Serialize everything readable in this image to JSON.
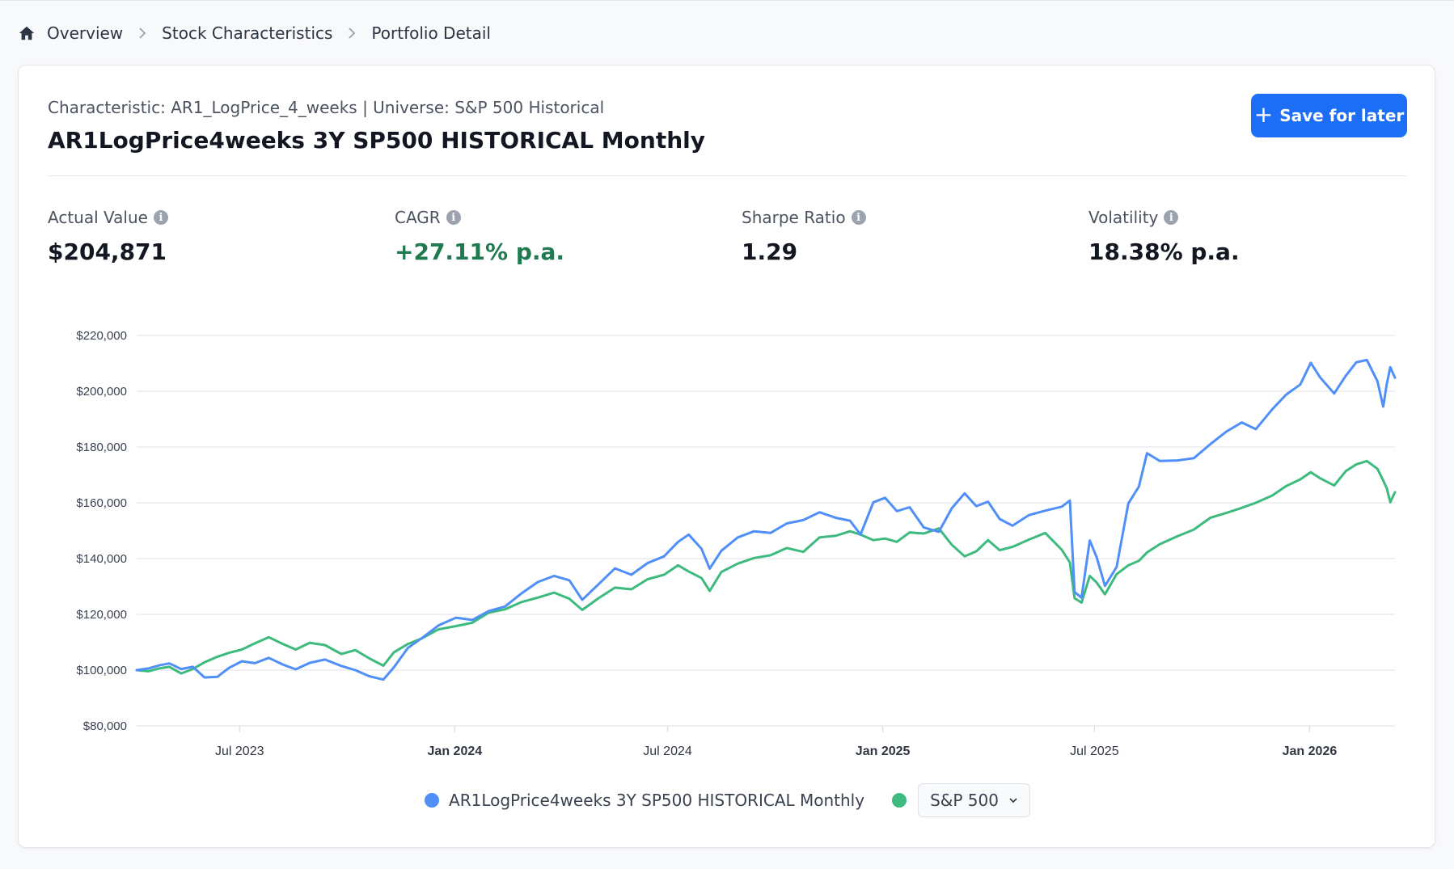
{
  "breadcrumb": {
    "items": [
      {
        "label": "Overview",
        "icon": "home-icon"
      },
      {
        "label": "Stock Characteristics"
      },
      {
        "label": "Portfolio Detail"
      }
    ]
  },
  "header": {
    "subtitle": "Characteristic: AR1_LogPrice_4_weeks | Universe: S&P 500 Historical",
    "title": "AR1LogPrice4weeks 3Y SP500 HISTORICAL Monthly",
    "save_button": {
      "label": "Save for later",
      "icon": "plus-icon"
    }
  },
  "metrics": [
    {
      "label": "Actual Value",
      "value": "$204,871",
      "icon": "info-icon"
    },
    {
      "label": "CAGR",
      "value": "+27.11% p.a.",
      "icon": "info-icon",
      "color": "#1f7a4f"
    },
    {
      "label": "Sharpe Ratio",
      "value": "1.29",
      "icon": "info-icon"
    },
    {
      "label": "Volatility",
      "value": "18.38% p.a.",
      "icon": "info-icon"
    }
  ],
  "legend": {
    "series_label": "AR1LogPrice4weeks 3Y SP500 HISTORICAL Monthly",
    "benchmark_select": {
      "selected": "S&P 500",
      "icon": "chevron-down-icon"
    }
  },
  "colors": {
    "primary": "#1d6ef6",
    "series_blue": "#4f8ff7",
    "series_green": "#3dba7e",
    "positive": "#1f7a4f",
    "gridline": "#e6e8ec"
  },
  "chart_data": {
    "type": "line",
    "title": "",
    "xlabel": "",
    "ylabel": "",
    "ylim": [
      80000,
      220000
    ],
    "xlim": [
      "2023-04-04",
      "2026-03-15"
    ],
    "grid": true,
    "legend_position": "bottom-center",
    "y_ticks": [
      {
        "label": "$80,000",
        "value": 80000
      },
      {
        "label": "$100,000",
        "value": 100000
      },
      {
        "label": "$120,000",
        "value": 120000
      },
      {
        "label": "$140,000",
        "value": 140000
      },
      {
        "label": "$160,000",
        "value": 160000
      },
      {
        "label": "$180,000",
        "value": 180000
      },
      {
        "label": "$200,000",
        "value": 200000
      },
      {
        "label": "$220,000",
        "value": 220000
      }
    ],
    "x_ticks": [
      {
        "label": "Jul 2023",
        "date": "2023-07-01",
        "bold": false
      },
      {
        "label": "Jan 2024",
        "date": "2024-01-01",
        "bold": true
      },
      {
        "label": "Jul 2024",
        "date": "2024-07-01",
        "bold": false
      },
      {
        "label": "Jan 2025",
        "date": "2025-01-01",
        "bold": true
      },
      {
        "label": "Jul 2025",
        "date": "2025-07-01",
        "bold": false
      },
      {
        "label": "Jan 2026",
        "date": "2026-01-01",
        "bold": true
      }
    ],
    "series": [
      {
        "name": "AR1LogPrice4weeks 3Y SP500 HISTORICAL Monthly",
        "color": "#4f8ff7",
        "points": [
          [
            "2023-04-04",
            100000
          ],
          [
            "2023-04-14",
            100600
          ],
          [
            "2023-04-24",
            101800
          ],
          [
            "2023-05-02",
            102400
          ],
          [
            "2023-05-12",
            100400
          ],
          [
            "2023-05-22",
            101200
          ],
          [
            "2023-06-01",
            97400
          ],
          [
            "2023-06-12",
            97600
          ],
          [
            "2023-06-22",
            100800
          ],
          [
            "2023-07-03",
            103200
          ],
          [
            "2023-07-14",
            102500
          ],
          [
            "2023-07-26",
            104400
          ],
          [
            "2023-08-07",
            102000
          ],
          [
            "2023-08-18",
            100300
          ],
          [
            "2023-08-30",
            102600
          ],
          [
            "2023-09-12",
            103800
          ],
          [
            "2023-09-26",
            101500
          ],
          [
            "2023-10-08",
            100000
          ],
          [
            "2023-10-20",
            97800
          ],
          [
            "2023-11-01",
            96600
          ],
          [
            "2023-11-10",
            101000
          ],
          [
            "2023-11-22",
            108000
          ],
          [
            "2023-12-04",
            111500
          ],
          [
            "2023-12-18",
            116000
          ],
          [
            "2024-01-02",
            118800
          ],
          [
            "2024-01-16",
            118000
          ],
          [
            "2024-01-30",
            121200
          ],
          [
            "2024-02-13",
            122800
          ],
          [
            "2024-02-27",
            127500
          ],
          [
            "2024-03-12",
            131600
          ],
          [
            "2024-03-26",
            133800
          ],
          [
            "2024-04-08",
            132200
          ],
          [
            "2024-04-19",
            125200
          ],
          [
            "2024-05-03",
            130800
          ],
          [
            "2024-05-17",
            136500
          ],
          [
            "2024-05-31",
            134200
          ],
          [
            "2024-06-14",
            138400
          ],
          [
            "2024-06-28",
            140800
          ],
          [
            "2024-07-10",
            146000
          ],
          [
            "2024-07-19",
            148600
          ],
          [
            "2024-07-30",
            143500
          ],
          [
            "2024-08-06",
            136400
          ],
          [
            "2024-08-16",
            142800
          ],
          [
            "2024-08-30",
            147600
          ],
          [
            "2024-09-13",
            149800
          ],
          [
            "2024-09-27",
            149200
          ],
          [
            "2024-10-11",
            152600
          ],
          [
            "2024-10-25",
            153800
          ],
          [
            "2024-11-08",
            156600
          ],
          [
            "2024-11-22",
            154600
          ],
          [
            "2024-12-04",
            153600
          ],
          [
            "2024-12-13",
            148600
          ],
          [
            "2024-12-24",
            160200
          ],
          [
            "2025-01-03",
            161800
          ],
          [
            "2025-01-13",
            157000
          ],
          [
            "2025-01-24",
            158400
          ],
          [
            "2025-02-05",
            151200
          ],
          [
            "2025-02-18",
            149600
          ],
          [
            "2025-03-01",
            158000
          ],
          [
            "2025-03-12",
            163400
          ],
          [
            "2025-03-22",
            158800
          ],
          [
            "2025-04-01",
            160400
          ],
          [
            "2025-04-11",
            154200
          ],
          [
            "2025-04-22",
            151800
          ],
          [
            "2025-05-06",
            155600
          ],
          [
            "2025-05-20",
            157200
          ],
          [
            "2025-06-03",
            158600
          ],
          [
            "2025-06-10",
            160800
          ],
          [
            "2025-06-14",
            128000
          ],
          [
            "2025-06-20",
            126000
          ],
          [
            "2025-06-27",
            146500
          ],
          [
            "2025-07-03",
            140400
          ],
          [
            "2025-07-10",
            130200
          ],
          [
            "2025-07-20",
            137000
          ],
          [
            "2025-07-30",
            159800
          ],
          [
            "2025-08-08",
            165800
          ],
          [
            "2025-08-15",
            177800
          ],
          [
            "2025-08-26",
            175000
          ],
          [
            "2025-09-10",
            175200
          ],
          [
            "2025-09-24",
            176000
          ],
          [
            "2025-10-08",
            181000
          ],
          [
            "2025-10-22",
            185600
          ],
          [
            "2025-11-04",
            188800
          ],
          [
            "2025-11-16",
            186400
          ],
          [
            "2025-11-30",
            193500
          ],
          [
            "2025-12-12",
            198800
          ],
          [
            "2025-12-24",
            202400
          ],
          [
            "2026-01-02",
            210200
          ],
          [
            "2026-01-10",
            205000
          ],
          [
            "2026-01-22",
            199200
          ],
          [
            "2026-02-01",
            205600
          ],
          [
            "2026-02-10",
            210400
          ],
          [
            "2026-02-19",
            211200
          ],
          [
            "2026-02-28",
            203600
          ],
          [
            "2026-03-05",
            194500
          ],
          [
            "2026-03-08",
            202600
          ],
          [
            "2026-03-11",
            208600
          ],
          [
            "2026-03-15",
            204871
          ]
        ]
      },
      {
        "name": "S&P 500",
        "color": "#3dba7e",
        "points": [
          [
            "2023-04-04",
            100000
          ],
          [
            "2023-04-14",
            99600
          ],
          [
            "2023-04-24",
            100700
          ],
          [
            "2023-05-02",
            101200
          ],
          [
            "2023-05-12",
            98800
          ],
          [
            "2023-05-22",
            100400
          ],
          [
            "2023-06-01",
            102800
          ],
          [
            "2023-06-12",
            104800
          ],
          [
            "2023-06-22",
            106200
          ],
          [
            "2023-07-03",
            107400
          ],
          [
            "2023-07-14",
            109600
          ],
          [
            "2023-07-26",
            111800
          ],
          [
            "2023-08-07",
            109400
          ],
          [
            "2023-08-18",
            107400
          ],
          [
            "2023-08-30",
            109800
          ],
          [
            "2023-09-12",
            109000
          ],
          [
            "2023-09-26",
            105800
          ],
          [
            "2023-10-08",
            107200
          ],
          [
            "2023-10-20",
            104200
          ],
          [
            "2023-11-01",
            101600
          ],
          [
            "2023-11-10",
            106400
          ],
          [
            "2023-11-22",
            109400
          ],
          [
            "2023-12-04",
            111400
          ],
          [
            "2023-12-18",
            114600
          ],
          [
            "2024-01-02",
            115800
          ],
          [
            "2024-01-16",
            117000
          ],
          [
            "2024-01-30",
            120600
          ],
          [
            "2024-02-13",
            121800
          ],
          [
            "2024-02-27",
            124400
          ],
          [
            "2024-03-12",
            126000
          ],
          [
            "2024-03-26",
            127800
          ],
          [
            "2024-04-08",
            125600
          ],
          [
            "2024-04-19",
            121600
          ],
          [
            "2024-05-03",
            125800
          ],
          [
            "2024-05-17",
            129600
          ],
          [
            "2024-05-31",
            129000
          ],
          [
            "2024-06-14",
            132600
          ],
          [
            "2024-06-28",
            134200
          ],
          [
            "2024-07-10",
            137600
          ],
          [
            "2024-07-19",
            135400
          ],
          [
            "2024-07-30",
            133000
          ],
          [
            "2024-08-06",
            128400
          ],
          [
            "2024-08-16",
            135200
          ],
          [
            "2024-08-30",
            138200
          ],
          [
            "2024-09-13",
            140200
          ],
          [
            "2024-09-27",
            141200
          ],
          [
            "2024-10-11",
            143800
          ],
          [
            "2024-10-25",
            142400
          ],
          [
            "2024-11-08",
            147600
          ],
          [
            "2024-11-22",
            148200
          ],
          [
            "2024-12-04",
            149800
          ],
          [
            "2024-12-13",
            148600
          ],
          [
            "2024-12-24",
            146600
          ],
          [
            "2025-01-03",
            147200
          ],
          [
            "2025-01-13",
            146000
          ],
          [
            "2025-01-24",
            149400
          ],
          [
            "2025-02-05",
            149000
          ],
          [
            "2025-02-18",
            150800
          ],
          [
            "2025-03-01",
            145000
          ],
          [
            "2025-03-12",
            140800
          ],
          [
            "2025-03-22",
            142600
          ],
          [
            "2025-04-01",
            146600
          ],
          [
            "2025-04-11",
            143000
          ],
          [
            "2025-04-22",
            144200
          ],
          [
            "2025-05-06",
            146800
          ],
          [
            "2025-05-20",
            149200
          ],
          [
            "2025-06-03",
            143200
          ],
          [
            "2025-06-10",
            138600
          ],
          [
            "2025-06-14",
            125800
          ],
          [
            "2025-06-20",
            124200
          ],
          [
            "2025-06-27",
            133800
          ],
          [
            "2025-07-03",
            131400
          ],
          [
            "2025-07-10",
            127200
          ],
          [
            "2025-07-20",
            134400
          ],
          [
            "2025-07-30",
            137600
          ],
          [
            "2025-08-08",
            139200
          ],
          [
            "2025-08-15",
            142200
          ],
          [
            "2025-08-26",
            145200
          ],
          [
            "2025-09-10",
            148000
          ],
          [
            "2025-09-24",
            150400
          ],
          [
            "2025-10-08",
            154600
          ],
          [
            "2025-10-22",
            156400
          ],
          [
            "2025-11-04",
            158200
          ],
          [
            "2025-11-16",
            160000
          ],
          [
            "2025-11-30",
            162600
          ],
          [
            "2025-12-12",
            166000
          ],
          [
            "2025-12-24",
            168400
          ],
          [
            "2026-01-02",
            171000
          ],
          [
            "2026-01-10",
            168800
          ],
          [
            "2026-01-22",
            166200
          ],
          [
            "2026-02-01",
            171400
          ],
          [
            "2026-02-10",
            173800
          ],
          [
            "2026-02-19",
            175000
          ],
          [
            "2026-02-28",
            172200
          ],
          [
            "2026-03-05",
            168000
          ],
          [
            "2026-03-08",
            165200
          ],
          [
            "2026-03-11",
            160200
          ],
          [
            "2026-03-15",
            163800
          ]
        ]
      }
    ]
  }
}
